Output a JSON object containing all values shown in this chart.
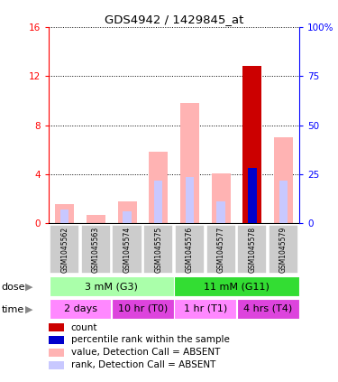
{
  "title": "GDS4942 / 1429845_at",
  "samples": [
    "GSM1045562",
    "GSM1045563",
    "GSM1045574",
    "GSM1045575",
    "GSM1045576",
    "GSM1045577",
    "GSM1045578",
    "GSM1045579"
  ],
  "value_absent": [
    1.6,
    0.7,
    1.8,
    5.8,
    9.8,
    4.1,
    0.0,
    7.0
  ],
  "rank_absent": [
    1.1,
    0.0,
    1.0,
    3.5,
    3.8,
    1.8,
    0.0,
    3.5
  ],
  "count_val": [
    0.0,
    0.0,
    0.0,
    0.0,
    0.0,
    0.0,
    12.8,
    0.0
  ],
  "percentile_val": [
    0.0,
    0.0,
    0.0,
    0.0,
    0.0,
    0.0,
    28.0,
    0.0
  ],
  "ylim_left": [
    0,
    16
  ],
  "ylim_right": [
    0,
    100
  ],
  "yticks_left": [
    0,
    4,
    8,
    12,
    16
  ],
  "yticks_right": [
    0,
    25,
    50,
    75,
    100
  ],
  "yticklabels_right": [
    "0",
    "25",
    "50",
    "75",
    "100%"
  ],
  "color_value_absent": "#ffb3b3",
  "color_rank_absent": "#c8c8ff",
  "color_count": "#cc0000",
  "color_percentile": "#0000cc",
  "dose_labels": [
    {
      "label": "3 mM (G3)",
      "start": 0,
      "end": 4,
      "color": "#aaffaa"
    },
    {
      "label": "11 mM (G11)",
      "start": 4,
      "end": 8,
      "color": "#33dd33"
    }
  ],
  "time_labels": [
    {
      "label": "2 days",
      "start": 0,
      "end": 2,
      "color": "#ff88ff"
    },
    {
      "label": "10 hr (T0)",
      "start": 2,
      "end": 4,
      "color": "#dd44dd"
    },
    {
      "label": "1 hr (T1)",
      "start": 4,
      "end": 6,
      "color": "#ff88ff"
    },
    {
      "label": "4 hrs (T4)",
      "start": 6,
      "end": 8,
      "color": "#dd44dd"
    }
  ],
  "bar_width": 0.6,
  "legend_items": [
    {
      "color": "#cc0000",
      "label": "count"
    },
    {
      "color": "#0000cc",
      "label": "percentile rank within the sample"
    },
    {
      "color": "#ffb3b3",
      "label": "value, Detection Call = ABSENT"
    },
    {
      "color": "#c8c8ff",
      "label": "rank, Detection Call = ABSENT"
    }
  ]
}
